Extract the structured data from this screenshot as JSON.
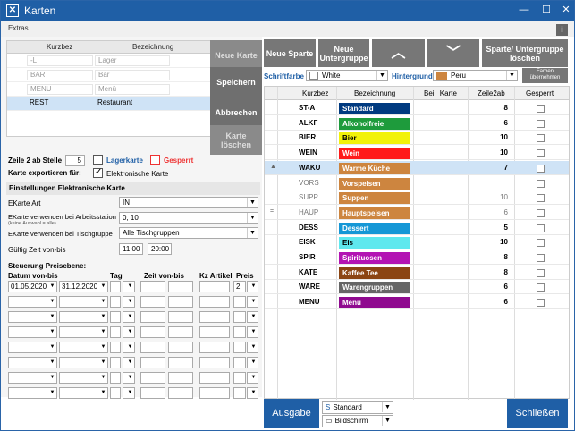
{
  "title": "Karten",
  "menu": {
    "extras": "Extras",
    "info": "i"
  },
  "list": {
    "col1": "Kurzbez",
    "col2": "Bezeichnung",
    "rows": [
      {
        "k": "-L",
        "b": "Lager"
      },
      {
        "k": "BAR",
        "b": "Bar"
      },
      {
        "k": "MENU",
        "b": "Menü"
      },
      {
        "k": "REST",
        "b": "Restaurant"
      }
    ]
  },
  "buttons": {
    "neue_karte": "Neue Karte",
    "speichern": "Speichern",
    "abbrechen": "Abbrechen",
    "karte_loeschen": "Karte löschen",
    "neue_sparte": "Neue Sparte",
    "neue_untergruppe": "Neue Untergruppe",
    "up": "︿",
    "down": "﹀",
    "sparte_loeschen": "Sparte/ Untergruppe löschen",
    "farben": "Farben übernehmen",
    "ausgabe": "Ausgabe",
    "schliessen": "Schließen"
  },
  "options": {
    "zeile2_label": "Zeile 2 ab Stelle",
    "zeile2_value": "5",
    "lagerkarte": "Lagerkarte",
    "gesperrt": "Gesperrt",
    "export_label": "Karte exportieren für:",
    "elektronische_karte": "Elektronische Karte"
  },
  "ekarte": {
    "section": "Einstellungen Elektronische Karte",
    "art_label": "EKarte Art",
    "art_value": "IN",
    "arbeitsstation_label": "EKarte verwenden bei Arbeitsstation",
    "arbeitsstation_hint": "(keine Auswahl = alle)",
    "arbeitsstation_value": "0, 10",
    "tischgruppe_label": "EKarte verwenden bei Tischgruppe",
    "tischgruppe_value": "Alle Tischgruppen",
    "zeit_label": "Gültig Zeit von-bis",
    "zeit_von": "11:00",
    "zeit_bis": "20:00"
  },
  "preis": {
    "section": "Steuerung Preisebene:",
    "h_datum": "Datum von-bis",
    "h_tag": "Tag",
    "h_zeit": "Zeit von-bis",
    "h_kz": "Kz Artikel",
    "h_preis": "Preis",
    "row1": {
      "von": "01.05.2020",
      "bis": "31.12.2020",
      "preis": "2"
    }
  },
  "colors": {
    "schrift_label": "Schriftfarbe",
    "schrift_value": "White",
    "hinter_label": "Hintergrund",
    "hinter_value": "Peru",
    "hinter_swatch": "#cd853f"
  },
  "table": {
    "h_kurz": "Kurzbez",
    "h_bez": "Bezeichnung",
    "h_beil": "Beil_Karte",
    "h_zeile": "Zeile2ab",
    "h_gesperrt": "Gesperrt",
    "rows": [
      {
        "k": "ST-A",
        "b": "Standard",
        "bg": "#003a80",
        "fg": "#ffffff",
        "n": "8",
        "dim": false,
        "mark": ""
      },
      {
        "k": "ALKF",
        "b": "Alkoholfreie",
        "bg": "#1e9b3c",
        "fg": "#ffffff",
        "n": "6",
        "dim": false,
        "mark": ""
      },
      {
        "k": "BIER",
        "b": "Bier",
        "bg": "#f2f20a",
        "fg": "#000000",
        "n": "10",
        "dim": false,
        "mark": ""
      },
      {
        "k": "WEIN",
        "b": "Wein",
        "bg": "#ff1a1a",
        "fg": "#ffffff",
        "n": "10",
        "dim": false,
        "mark": ""
      },
      {
        "k": "WAKU",
        "b": "Warme Küche",
        "bg": "#cd853f",
        "fg": "#ffffff",
        "n": "7",
        "dim": false,
        "mark": "▲"
      },
      {
        "k": "VORS",
        "b": "Vorspeisen",
        "bg": "#cd853f",
        "fg": "#ffffff",
        "n": "",
        "dim": true,
        "mark": ""
      },
      {
        "k": "SUPP",
        "b": "Suppen",
        "bg": "#cd853f",
        "fg": "#ffffff",
        "n": "10",
        "dim": true,
        "mark": ""
      },
      {
        "k": "HAUP",
        "b": "Hauptspeisen",
        "bg": "#cd853f",
        "fg": "#ffffff",
        "n": "6",
        "dim": true,
        "mark": "="
      },
      {
        "k": "DESS",
        "b": "Dessert",
        "bg": "#1597d6",
        "fg": "#ffffff",
        "n": "5",
        "dim": false,
        "mark": ""
      },
      {
        "k": "EISK",
        "b": "Eis",
        "bg": "#5fe8ee",
        "fg": "#000000",
        "n": "10",
        "dim": false,
        "mark": ""
      },
      {
        "k": "SPIR",
        "b": "Spirituosen",
        "bg": "#b313b3",
        "fg": "#ffffff",
        "n": "8",
        "dim": false,
        "mark": ""
      },
      {
        "k": "KATE",
        "b": "Kaffee Tee",
        "bg": "#8b4513",
        "fg": "#ffffff",
        "n": "8",
        "dim": false,
        "mark": ""
      },
      {
        "k": "WARE",
        "b": "Warengruppen",
        "bg": "#666666",
        "fg": "#ffffff",
        "n": "6",
        "dim": false,
        "mark": ""
      },
      {
        "k": "MENU",
        "b": "Menü",
        "bg": "#8f0a8f",
        "fg": "#ffffff",
        "n": "6",
        "dim": false,
        "mark": ""
      }
    ]
  },
  "output": {
    "opt1": "Standard",
    "opt2": "Bildschirm"
  }
}
